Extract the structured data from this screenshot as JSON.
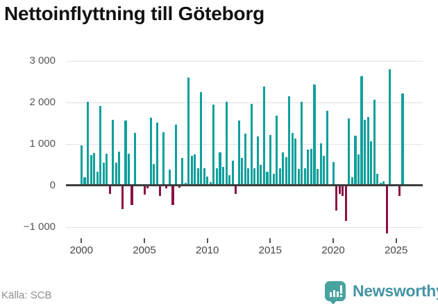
{
  "title": "Nettoinflyttning till Göteborg",
  "source": "Källa: SCB",
  "branding": {
    "logo_text": "Newsworthy",
    "logo_icon": "bar-chart-speech-bubble-icon"
  },
  "colors": {
    "positive_bar": "#0fa09c",
    "negative_bar": "#8a1146",
    "gridline": "#e2e2e2",
    "zero_line": "#3d3d3d",
    "axis_text": "#565656",
    "title_text": "#111111",
    "source_text": "#8d8d8d",
    "brand_icon": "#48a3a0",
    "brand_text": "#4594a4"
  },
  "chart_data": {
    "type": "bar",
    "title": "Nettoinflyttning till Göteborg",
    "frequency": "quarterly",
    "start_year": 2000,
    "start_quarter": 1,
    "end_period": "2025-Q3",
    "grid": true,
    "x_tick_labels": [
      "2000",
      "2005",
      "2010",
      "2015",
      "2020",
      "2025"
    ],
    "y_tick_values": [
      3000,
      2000,
      1000,
      0,
      -1000
    ],
    "y_tick_labels": [
      "3 000",
      "2 000",
      "1 000",
      "0",
      "−1 000"
    ],
    "ylim": [
      -1300,
      3200
    ],
    "values": [
      970,
      190,
      2020,
      730,
      780,
      330,
      1920,
      550,
      770,
      -200,
      1580,
      540,
      820,
      -580,
      1570,
      770,
      -480,
      1260,
      30,
      30,
      -230,
      -80,
      1630,
      520,
      1520,
      -250,
      1280,
      -80,
      380,
      -480,
      1470,
      -50,
      660,
      60,
      2590,
      710,
      740,
      410,
      2250,
      420,
      220,
      80,
      1940,
      410,
      790,
      440,
      2020,
      240,
      600,
      -210,
      1560,
      670,
      1240,
      420,
      1960,
      420,
      1180,
      500,
      2380,
      330,
      1220,
      280,
      1680,
      420,
      790,
      680,
      2140,
      1270,
      1130,
      390,
      2020,
      420,
      870,
      880,
      2430,
      400,
      1010,
      720,
      1800,
      30,
      560,
      -600,
      -210,
      -250,
      -850,
      1610,
      190,
      1190,
      740,
      2630,
      1580,
      1640,
      1060,
      2060,
      280,
      60,
      100,
      -1150,
      2790,
      30,
      30,
      -250,
      2220
    ]
  }
}
